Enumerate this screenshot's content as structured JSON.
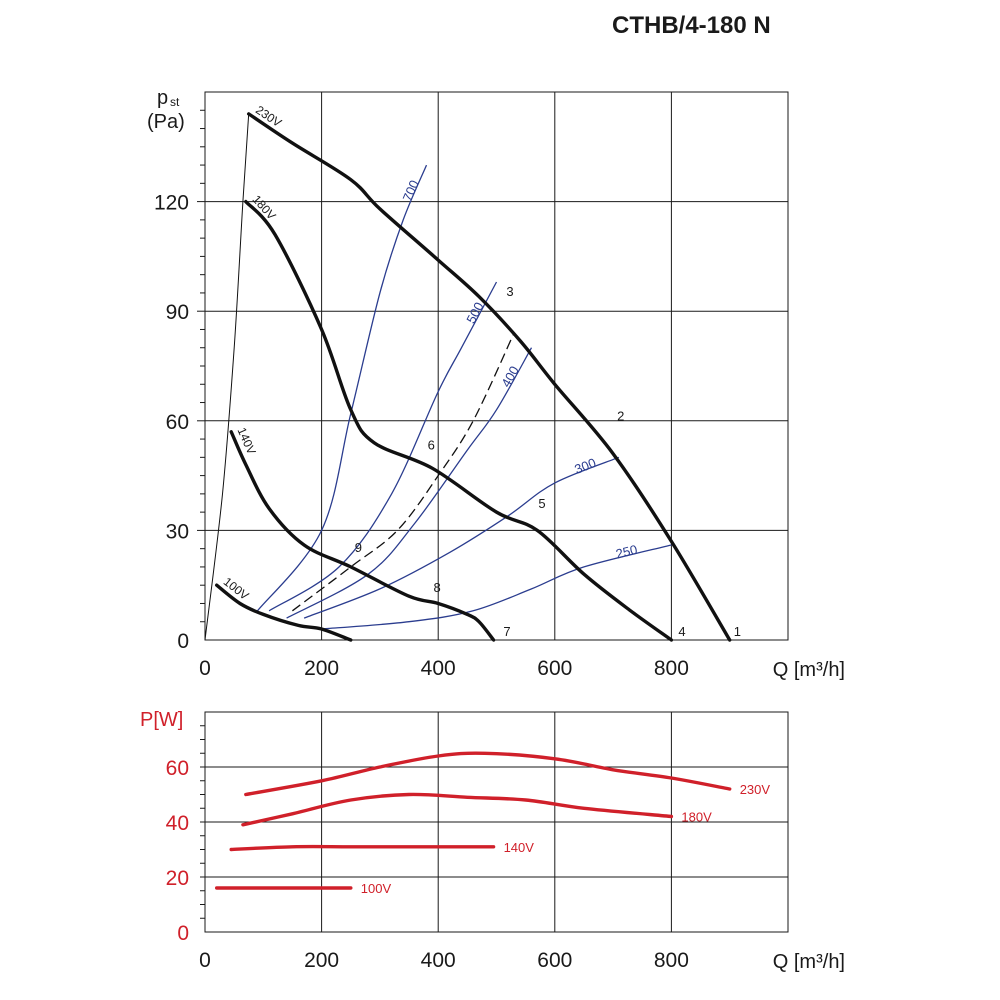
{
  "title": "CTHB/4-180 N",
  "chart_data": [
    {
      "type": "line",
      "ylabel_main": "p",
      "ylabel_sub": "st",
      "ylabel_unit": "(Pa)",
      "xlabel": "Q [m³/h]",
      "xlim": [
        0,
        1000
      ],
      "ylim": [
        0,
        150
      ],
      "xticks": [
        0,
        200,
        400,
        600,
        800
      ],
      "yticks": [
        0,
        30,
        60,
        90,
        120
      ],
      "grid": true,
      "series": [
        {
          "name": "230V",
          "color": "#111111",
          "points": [
            [
              75,
              144
            ],
            [
              150,
              136
            ],
            [
              250,
              126
            ],
            [
              300,
              118
            ],
            [
              400,
              104
            ],
            [
              470,
              94
            ],
            [
              540,
              82
            ],
            [
              600,
              70
            ],
            [
              700,
              51
            ],
            [
              800,
              27
            ],
            [
              900,
              0
            ]
          ]
        },
        {
          "name": "180V",
          "color": "#111111",
          "points": [
            [
              70,
              120
            ],
            [
              120,
              111
            ],
            [
              200,
              85
            ],
            [
              250,
              63
            ],
            [
              290,
              54
            ],
            [
              390,
              47
            ],
            [
              500,
              35
            ],
            [
              570,
              30
            ],
            [
              650,
              18
            ],
            [
              730,
              8
            ],
            [
              800,
              0
            ]
          ]
        },
        {
          "name": "140V",
          "color": "#111111",
          "points": [
            [
              45,
              57
            ],
            [
              70,
              48
            ],
            [
              110,
              36
            ],
            [
              170,
              26
            ],
            [
              250,
              20
            ],
            [
              350,
              12
            ],
            [
              400,
              10
            ],
            [
              450,
              7
            ],
            [
              470,
              5
            ],
            [
              495,
              0
            ]
          ]
        },
        {
          "name": "100V",
          "color": "#111111",
          "points": [
            [
              20,
              15
            ],
            [
              60,
              10
            ],
            [
              100,
              7
            ],
            [
              160,
              4
            ],
            [
              200,
              3
            ],
            [
              250,
              0
            ]
          ]
        }
      ],
      "system_curves": [
        {
          "name": "700",
          "color": "#2b3d8f",
          "points": [
            [
              90,
              8
            ],
            [
              200,
              30
            ],
            [
              250,
              62
            ],
            [
              300,
              95
            ],
            [
              340,
              115
            ],
            [
              380,
              130
            ]
          ]
        },
        {
          "name": "500",
          "color": "#2b3d8f",
          "points": [
            [
              110,
              8
            ],
            [
              230,
              20
            ],
            [
              320,
              40
            ],
            [
              400,
              68
            ],
            [
              440,
              80
            ],
            [
              500,
              98
            ]
          ]
        },
        {
          "name": "400",
          "color": "#2b3d8f",
          "points": [
            [
              140,
              6
            ],
            [
              280,
              18
            ],
            [
              360,
              32
            ],
            [
              450,
              52
            ],
            [
              500,
              63
            ],
            [
              560,
              80
            ]
          ]
        },
        {
          "name": "300",
          "color": "#2b3d8f",
          "points": [
            [
              170,
              6
            ],
            [
              300,
              14
            ],
            [
              420,
              24
            ],
            [
              520,
              34
            ],
            [
              600,
              43
            ],
            [
              710,
              50
            ]
          ]
        },
        {
          "name": "250",
          "color": "#2b3d8f",
          "points": [
            [
              200,
              3
            ],
            [
              350,
              5
            ],
            [
              460,
              8
            ],
            [
              560,
              14
            ],
            [
              650,
              20
            ],
            [
              800,
              26
            ]
          ]
        },
        {
          "name": "",
          "color": "#111111",
          "dashed": true,
          "points": [
            [
              150,
              8
            ],
            [
              250,
              20
            ],
            [
              330,
              30
            ],
            [
              400,
              45
            ],
            [
              460,
              60
            ],
            [
              530,
              84
            ]
          ]
        },
        {
          "name": "",
          "color": "#111111",
          "thin": true,
          "points": [
            [
              0,
              0
            ],
            [
              30,
              40
            ],
            [
              50,
              80
            ],
            [
              65,
              120
            ],
            [
              75,
              144
            ]
          ]
        }
      ],
      "point_labels": [
        {
          "label": "1",
          "x": 900,
          "y": 0
        },
        {
          "label": "2",
          "x": 700,
          "y": 59
        },
        {
          "label": "3",
          "x": 510,
          "y": 93
        },
        {
          "label": "4",
          "x": 805,
          "y": 0
        },
        {
          "label": "5",
          "x": 565,
          "y": 35
        },
        {
          "label": "6",
          "x": 375,
          "y": 51
        },
        {
          "label": "7",
          "x": 505,
          "y": 0
        },
        {
          "label": "8",
          "x": 385,
          "y": 12
        },
        {
          "label": "9",
          "x": 250,
          "y": 23
        }
      ]
    },
    {
      "type": "line",
      "ylabel": "P[W]",
      "xlabel": "Q [m³/h]",
      "xlim": [
        0,
        1000
      ],
      "ylim": [
        0,
        80
      ],
      "xticks": [
        0,
        200,
        400,
        600,
        800
      ],
      "yticks": [
        0,
        20,
        40,
        60
      ],
      "grid": true,
      "series": [
        {
          "name": "230V",
          "color": "#d0202a",
          "points": [
            [
              70,
              50
            ],
            [
              200,
              55
            ],
            [
              300,
              60
            ],
            [
              400,
              64
            ],
            [
              480,
              65
            ],
            [
              600,
              63
            ],
            [
              700,
              59
            ],
            [
              800,
              56
            ],
            [
              900,
              52
            ]
          ]
        },
        {
          "name": "180V",
          "color": "#d0202a",
          "points": [
            [
              65,
              39
            ],
            [
              150,
              43
            ],
            [
              250,
              48
            ],
            [
              350,
              50
            ],
            [
              450,
              49
            ],
            [
              550,
              48
            ],
            [
              650,
              45
            ],
            [
              800,
              42
            ]
          ]
        },
        {
          "name": "140V",
          "color": "#d0202a",
          "points": [
            [
              45,
              30
            ],
            [
              150,
              31
            ],
            [
              250,
              31
            ],
            [
              350,
              31
            ],
            [
              420,
              31
            ],
            [
              495,
              31
            ]
          ]
        },
        {
          "name": "100V",
          "color": "#d0202a",
          "points": [
            [
              20,
              16
            ],
            [
              100,
              16
            ],
            [
              200,
              16
            ],
            [
              250,
              16
            ]
          ]
        }
      ]
    }
  ]
}
